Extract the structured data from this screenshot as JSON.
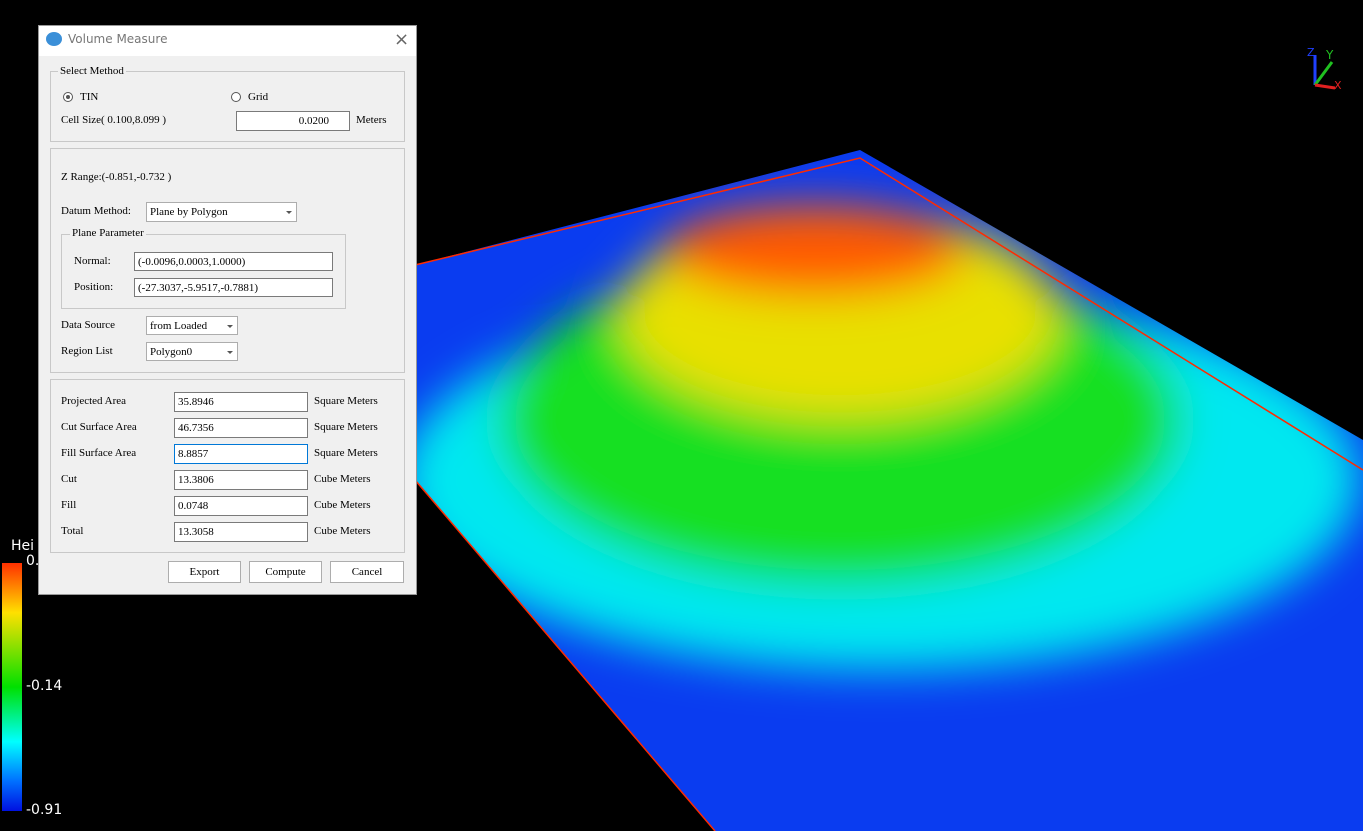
{
  "dialog": {
    "title": "Volume Measure",
    "select_method": {
      "legend": "Select Method",
      "options": [
        "TIN",
        "Grid"
      ],
      "selected": 0,
      "cell_size_label": "Cell Size( 0.100,8.099 )",
      "cell_size_value": "0.0200",
      "cell_size_unit": "Meters"
    },
    "datum": {
      "z_range": "Z Range:(-0.851,-0.732 )",
      "datum_method_label": "Datum Method:",
      "datum_method_value": "Plane by Polygon",
      "plane_legend": "Plane Parameter",
      "normal_label": "Normal:",
      "normal_value": "(-0.0096,0.0003,1.0000)",
      "position_label": "Position:",
      "position_value": "(-27.3037,-5.9517,-0.7881)",
      "data_source_label": "Data Source",
      "data_source_value": "from Loaded",
      "region_list_label": "Region List",
      "region_list_value": "Polygon0"
    },
    "results": [
      {
        "label": "Projected Area",
        "value": "35.8946",
        "unit": "Square Meters"
      },
      {
        "label": "Cut Surface Area",
        "value": "46.7356",
        "unit": "Square Meters"
      },
      {
        "label": "Fill Surface Area",
        "value": "8.8857",
        "unit": "Square Meters"
      },
      {
        "label": "Cut",
        "value": "13.3806",
        "unit": "Cube Meters"
      },
      {
        "label": "Fill",
        "value": "0.0748",
        "unit": "Cube Meters"
      },
      {
        "label": "Total",
        "value": "13.3058",
        "unit": "Cube Meters"
      }
    ],
    "buttons": [
      "Export",
      "Compute",
      "Cancel"
    ]
  },
  "viewer": {
    "legend_title": "Hei",
    "legend_labels": [
      "0.",
      "-0.14",
      "-0.91"
    ],
    "axes": [
      "Z",
      "Y",
      "X"
    ]
  }
}
